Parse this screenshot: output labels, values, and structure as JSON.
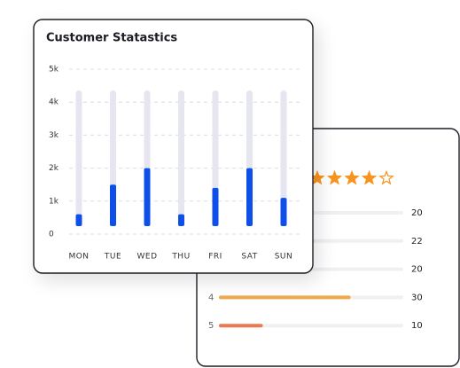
{
  "chart_data": {
    "type": "bar",
    "title": "Customer Statastics",
    "categories": [
      "MON",
      "TUE",
      "WED",
      "THU",
      "FRI",
      "SAT",
      "SUN"
    ],
    "values": [
      600,
      1500,
      2000,
      600,
      1400,
      2000,
      1100
    ],
    "color": "#0d4fe8",
    "ylim": [
      0,
      5000
    ],
    "yticks": [
      0,
      {
        "value": 1000,
        "label": "1k"
      },
      {
        "value": 2000,
        "label": "2k"
      },
      {
        "value": 3000,
        "label": "3k"
      },
      {
        "value": 4000,
        "label": "4k"
      },
      {
        "value": 5000,
        "label": "5k"
      }
    ],
    "grid": true
  },
  "rating_card": {
    "rating": 4,
    "stars": 5,
    "rows": [
      {
        "label": null,
        "count": 20,
        "color": "#e8e8ee"
      },
      {
        "label": null,
        "count": 22,
        "color": "#e8e8ee"
      },
      {
        "label": null,
        "count": 20,
        "color": "#e8e8ee"
      },
      {
        "label": "4",
        "count": 30,
        "color": "#f0a94a"
      },
      {
        "label": "5",
        "count": 10,
        "color": "#ec7a50"
      }
    ]
  }
}
